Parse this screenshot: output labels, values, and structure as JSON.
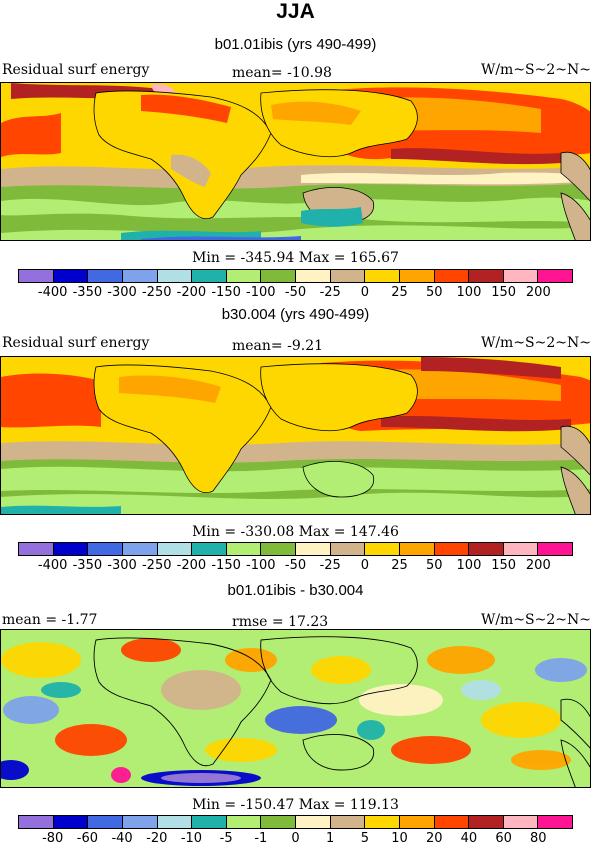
{
  "season": "JJA",
  "palettes": {
    "main": [
      "#9370db",
      "#0000cd",
      "#4169e1",
      "#7fa3ea",
      "#b0e0e6",
      "#20b2aa",
      "#b2ee74",
      "#7fba3b",
      "#fff3c4",
      "#d2b48c",
      "#ffd700",
      "#ffa500",
      "#ff4500",
      "#b22222",
      "#ffb6c1",
      "#ff1493"
    ],
    "diff": [
      "#9370db",
      "#0000cd",
      "#4169e1",
      "#7fa3ea",
      "#b0e0e6",
      "#20b2aa",
      "#b2ee74",
      "#7fba3b",
      "#fff3c4",
      "#d2b48c",
      "#ffd700",
      "#ffa500",
      "#ff4500",
      "#b22222",
      "#ffb6c1",
      "#ff1493"
    ]
  },
  "panels": [
    {
      "title": "b01.01ibis (yrs 490-499)",
      "left_label": "Residual surf energy",
      "center_label": "mean=  -10.98",
      "right_label": "W/m~S~2~N~",
      "min_max": "Min = -345.94  Max = 165.67",
      "ticks": [
        "-400",
        "-350",
        "-300",
        "-250",
        "-200",
        "-150",
        "-100",
        "-50",
        "-25",
        "0",
        "25",
        "50",
        "100",
        "150",
        "200"
      ]
    },
    {
      "title": "b30.004 (yrs 490-499)",
      "left_label": "Residual surf energy",
      "center_label": "mean=   -9.21",
      "right_label": "W/m~S~2~N~",
      "min_max": "Min = -330.08  Max = 147.46",
      "ticks": [
        "-400",
        "-350",
        "-300",
        "-250",
        "-200",
        "-150",
        "-100",
        "-50",
        "-25",
        "0",
        "25",
        "50",
        "100",
        "150",
        "200"
      ]
    },
    {
      "title": "b01.01ibis - b30.004",
      "left_label": "mean =   -1.77",
      "center_label": "rmse =  17.23",
      "right_label": "W/m~S~2~N~",
      "min_max": "Min = -150.47  Max = 119.13",
      "ticks": [
        "-80",
        "-60",
        "-40",
        "-20",
        "-10",
        "-5",
        "-1",
        "0",
        "1",
        "5",
        "10",
        "20",
        "40",
        "60",
        "80"
      ]
    }
  ]
}
